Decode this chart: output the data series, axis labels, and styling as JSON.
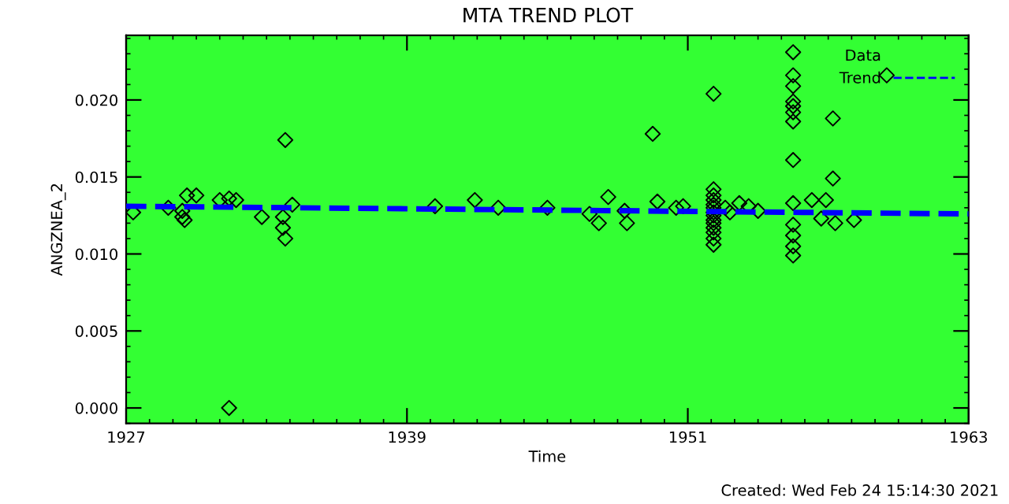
{
  "chart_data": {
    "type": "scatter",
    "title": "MTA TREND PLOT",
    "xlabel": "Time",
    "ylabel": "ANGZNEA_2",
    "xlim": [
      1927,
      1963
    ],
    "xticks": [
      1927,
      1939,
      1951,
      1963
    ],
    "ylim": [
      -0.001,
      0.0242
    ],
    "yticks": [
      {
        "value": 0,
        "label": "0.000"
      },
      {
        "value": 0.005,
        "label": "0.005"
      },
      {
        "value": 0.01,
        "label": "0.010"
      },
      {
        "value": 0.015,
        "label": "0.015"
      },
      {
        "value": 0.02,
        "label": "0.020"
      }
    ],
    "grid": false,
    "legend": "top right",
    "annotations": [
      "Created: Wed Feb 24 15:14:30 2021"
    ],
    "series": [
      {
        "name": "Data",
        "color": "#000000",
        "marker": "diamond",
        "x": [
          1927.3,
          1928.8,
          1929.4,
          1929.4,
          1929.5,
          1929.6,
          1930.0,
          1931.0,
          1931.4,
          1931.7,
          1932.8,
          1933.7,
          1933.7,
          1933.8,
          1934.1,
          1933.8,
          1931.4,
          1940.2,
          1941.9,
          1942.9,
          1945.0,
          1946.8,
          1947.2,
          1947.6,
          1948.3,
          1948.4,
          1949.5,
          1949.7,
          1950.5,
          1950.8,
          1952.1,
          1952.1,
          1952.1,
          1952.1,
          1952.1,
          1952.1,
          1952.1,
          1952.1,
          1952.1,
          1952.1,
          1952.1,
          1952.1,
          1952.1,
          1952.1,
          1952.6,
          1952.8,
          1953.2,
          1953.6,
          1954.0,
          1955.5,
          1955.5,
          1955.5,
          1955.5,
          1955.5,
          1955.5,
          1955.5,
          1955.5,
          1955.5,
          1955.5,
          1955.5,
          1955.5,
          1955.5,
          1957.2,
          1957.2,
          1956.3,
          1956.9,
          1956.7,
          1957.3,
          1958.1,
          1959.5
        ],
        "values": [
          0.0127,
          0.013,
          0.0128,
          0.0124,
          0.0122,
          0.0138,
          0.0138,
          0.0135,
          0.0136,
          0.0135,
          0.0124,
          0.0124,
          0.0117,
          0.011,
          0.0132,
          0.0174,
          0.0,
          0.0131,
          0.0135,
          0.013,
          0.013,
          0.0126,
          0.012,
          0.0137,
          0.0128,
          0.012,
          0.0178,
          0.0134,
          0.013,
          0.0131,
          0.0142,
          0.0138,
          0.0135,
          0.0132,
          0.013,
          0.0127,
          0.0125,
          0.0122,
          0.012,
          0.0117,
          0.0114,
          0.011,
          0.0106,
          0.0204,
          0.013,
          0.0127,
          0.0133,
          0.0131,
          0.0128,
          0.0231,
          0.0216,
          0.0209,
          0.0199,
          0.0196,
          0.0192,
          0.0186,
          0.0161,
          0.0133,
          0.0119,
          0.0112,
          0.0105,
          0.0099,
          0.0188,
          0.0149,
          0.0135,
          0.0135,
          0.0123,
          0.012,
          0.0122,
          0.0216
        ]
      },
      {
        "name": "Trend",
        "type": "line",
        "color": "#0000ff",
        "line_style": "dashed",
        "x": [
          1927,
          1963
        ],
        "values": [
          0.0131,
          0.0126
        ]
      }
    ]
  }
}
